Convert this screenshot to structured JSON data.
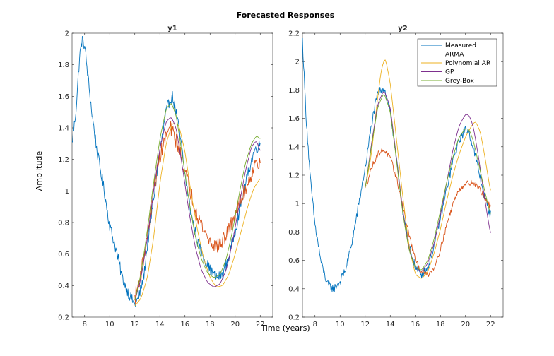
{
  "chart_data": {
    "type": "line",
    "title": "Forecasted Responses",
    "xlabel": "Time (years)",
    "ylabel": "Amplitude",
    "colors": {
      "Measured": "#0072BD",
      "ARMA": "#D95319",
      "Polynomial AR": "#EDB120",
      "GP": "#7E2F8E",
      "Grey-Box": "#77AC30"
    },
    "legend_order": [
      "Measured",
      "ARMA",
      "Polynomial AR",
      "GP",
      "Grey-Box"
    ],
    "legend_location": "top-right of y2 axes",
    "axes": [
      {
        "name": "y1",
        "title": "y1",
        "xlim": [
          7,
          23
        ],
        "ylim": [
          0.2,
          2.0
        ],
        "xticks": [
          8,
          10,
          12,
          14,
          16,
          18,
          20,
          22
        ],
        "yticks": [
          0.2,
          0.4,
          0.6,
          0.8,
          1.0,
          1.2,
          1.4,
          1.6,
          1.8,
          2.0
        ],
        "ytick_labels": [
          "0.2",
          "0.4",
          "0.6",
          "0.8",
          "1",
          "1.2",
          "1.4",
          "1.6",
          "1.8",
          "2"
        ],
        "series": [
          {
            "name": "Measured",
            "x": [
              7.0,
              7.3,
              7.6,
              7.8,
              8.0,
              8.3,
              8.6,
              9.0,
              9.5,
              10.0,
              10.5,
              11.0,
              11.5,
              12.0,
              12.3,
              12.7,
              13.0,
              13.5,
              14.0,
              14.5,
              14.8,
              15.0,
              15.3,
              15.7,
              16.0,
              16.5,
              17.0,
              17.5,
              18.0,
              18.5,
              19.0,
              19.5,
              20.0,
              20.5,
              21.0,
              21.5,
              22.0
            ],
            "y": [
              1.3,
              1.5,
              1.85,
              1.96,
              1.92,
              1.7,
              1.48,
              1.25,
              1.03,
              0.78,
              0.63,
              0.45,
              0.35,
              0.28,
              0.32,
              0.45,
              0.65,
              0.95,
              1.25,
              1.5,
              1.58,
              1.6,
              1.5,
              1.3,
              1.1,
              0.85,
              0.68,
              0.58,
              0.5,
              0.45,
              0.47,
              0.58,
              0.75,
              0.93,
              1.1,
              1.25,
              1.3
            ],
            "noise": 0.035
          },
          {
            "name": "ARMA",
            "x": [
              12.0,
              12.5,
              13.0,
              13.5,
              14.0,
              14.5,
              14.8,
              15.0,
              15.5,
              16.0,
              16.5,
              17.0,
              17.5,
              18.0,
              18.5,
              19.0,
              19.5,
              20.0,
              20.5,
              21.0,
              21.5,
              22.0
            ],
            "y": [
              0.32,
              0.48,
              0.72,
              1.0,
              1.22,
              1.35,
              1.4,
              1.38,
              1.28,
              1.12,
              0.98,
              0.85,
              0.75,
              0.68,
              0.65,
              0.68,
              0.75,
              0.85,
              0.95,
              1.05,
              1.15,
              1.2
            ],
            "noise": 0.05
          },
          {
            "name": "Polynomial AR",
            "x": [
              12.0,
              12.5,
              13.0,
              13.5,
              14.0,
              14.5,
              15.0,
              15.5,
              16.0,
              16.5,
              17.0,
              17.5,
              18.0,
              18.5,
              19.0,
              19.5,
              20.0,
              20.5,
              21.0,
              21.5,
              22.0
            ],
            "y": [
              0.27,
              0.32,
              0.45,
              0.7,
              1.05,
              1.3,
              1.43,
              1.42,
              1.25,
              0.98,
              0.75,
              0.57,
              0.45,
              0.39,
              0.4,
              0.47,
              0.6,
              0.75,
              0.9,
              1.02,
              1.08
            ],
            "noise": 0
          },
          {
            "name": "GP",
            "x": [
              12.0,
              12.5,
              13.0,
              13.5,
              14.0,
              14.5,
              14.9,
              15.3,
              15.8,
              16.3,
              16.8,
              17.3,
              17.8,
              18.3,
              18.8,
              19.3,
              19.8,
              20.3,
              20.8,
              21.3,
              21.7,
              22.0
            ],
            "y": [
              0.3,
              0.45,
              0.7,
              1.0,
              1.27,
              1.44,
              1.47,
              1.4,
              1.15,
              0.88,
              0.65,
              0.5,
              0.42,
              0.39,
              0.41,
              0.5,
              0.68,
              0.9,
              1.12,
              1.28,
              1.32,
              1.25
            ],
            "noise": 0
          },
          {
            "name": "Grey-Box",
            "x": [
              12.0,
              12.5,
              13.0,
              13.5,
              14.0,
              14.5,
              14.9,
              15.3,
              15.8,
              16.3,
              16.8,
              17.3,
              17.8,
              18.3,
              18.8,
              19.3,
              19.8,
              20.3,
              20.8,
              21.3,
              21.7,
              22.0
            ],
            "y": [
              0.3,
              0.48,
              0.75,
              1.05,
              1.33,
              1.52,
              1.56,
              1.48,
              1.22,
              0.95,
              0.72,
              0.57,
              0.48,
              0.45,
              0.47,
              0.57,
              0.75,
              0.97,
              1.17,
              1.3,
              1.35,
              1.33
            ],
            "noise": 0
          }
        ]
      },
      {
        "name": "y2",
        "title": "y2",
        "xlim": [
          7,
          23
        ],
        "ylim": [
          0.2,
          2.2
        ],
        "xticks": [
          8,
          10,
          12,
          14,
          16,
          18,
          20,
          22
        ],
        "yticks": [
          0.2,
          0.4,
          0.6,
          0.8,
          1.0,
          1.2,
          1.4,
          1.6,
          1.8,
          2.0,
          2.2
        ],
        "ytick_labels": [
          "0.2",
          "0.4",
          "0.6",
          "0.8",
          "1",
          "1.2",
          "1.4",
          "1.6",
          "1.8",
          "2",
          "2.2"
        ],
        "series": [
          {
            "name": "Measured",
            "x": [
              7.0,
              7.3,
              7.6,
              8.0,
              8.5,
              9.0,
              9.5,
              10.0,
              10.5,
              11.0,
              11.5,
              12.0,
              12.5,
              13.0,
              13.5,
              14.0,
              14.5,
              15.0,
              15.5,
              16.0,
              16.5,
              17.0,
              17.5,
              18.0,
              18.5,
              19.0,
              19.5,
              20.0,
              20.3,
              20.6,
              21.0,
              21.5,
              22.0
            ],
            "y": [
              2.15,
              1.6,
              1.2,
              0.85,
              0.58,
              0.43,
              0.4,
              0.45,
              0.55,
              0.75,
              1.0,
              1.25,
              1.55,
              1.78,
              1.82,
              1.65,
              1.3,
              0.95,
              0.7,
              0.55,
              0.5,
              0.55,
              0.7,
              0.9,
              1.1,
              1.3,
              1.45,
              1.52,
              1.5,
              1.4,
              1.25,
              1.05,
              0.92
            ],
            "noise": 0.03
          },
          {
            "name": "ARMA",
            "x": [
              12.0,
              12.5,
              13.0,
              13.5,
              14.0,
              14.5,
              15.0,
              15.5,
              16.0,
              16.5,
              17.0,
              17.5,
              18.0,
              18.5,
              19.0,
              19.5,
              20.0,
              20.5,
              21.0,
              21.5,
              22.0
            ],
            "y": [
              1.1,
              1.25,
              1.35,
              1.38,
              1.32,
              1.18,
              0.98,
              0.78,
              0.6,
              0.52,
              0.5,
              0.55,
              0.68,
              0.85,
              1.0,
              1.1,
              1.14,
              1.15,
              1.12,
              1.05,
              0.97
            ],
            "noise": 0.02
          },
          {
            "name": "Polynomial AR",
            "x": [
              12.0,
              12.5,
              13.0,
              13.3,
              13.6,
              14.0,
              14.5,
              15.0,
              15.5,
              16.0,
              16.5,
              17.0,
              17.5,
              18.0,
              18.5,
              19.0,
              19.5,
              20.0,
              20.5,
              20.8,
              21.2,
              21.6,
              22.0
            ],
            "y": [
              1.1,
              1.35,
              1.75,
              1.95,
              2.03,
              1.85,
              1.45,
              1.05,
              0.7,
              0.5,
              0.47,
              0.52,
              0.65,
              0.82,
              1.02,
              1.2,
              1.35,
              1.47,
              1.55,
              1.58,
              1.5,
              1.3,
              1.08
            ],
            "noise": 0
          },
          {
            "name": "GP",
            "x": [
              12.0,
              12.5,
              13.0,
              13.5,
              14.0,
              14.5,
              15.0,
              15.5,
              16.0,
              16.5,
              17.0,
              17.5,
              18.0,
              18.5,
              19.0,
              19.5,
              20.0,
              20.3,
              20.6,
              21.0,
              21.5,
              22.0
            ],
            "y": [
              1.1,
              1.42,
              1.7,
              1.8,
              1.68,
              1.32,
              0.95,
              0.68,
              0.55,
              0.52,
              0.58,
              0.72,
              0.92,
              1.15,
              1.38,
              1.55,
              1.63,
              1.62,
              1.55,
              1.35,
              1.05,
              0.78
            ],
            "noise": 0
          },
          {
            "name": "Grey-Box",
            "x": [
              12.0,
              12.5,
              13.0,
              13.5,
              14.0,
              14.5,
              15.0,
              15.5,
              16.0,
              16.5,
              17.0,
              17.5,
              18.0,
              18.5,
              19.0,
              19.5,
              20.0,
              20.3,
              20.6,
              21.0,
              21.5,
              22.0
            ],
            "y": [
              1.1,
              1.4,
              1.68,
              1.78,
              1.65,
              1.3,
              0.93,
              0.67,
              0.55,
              0.53,
              0.6,
              0.75,
              0.95,
              1.15,
              1.33,
              1.47,
              1.53,
              1.52,
              1.45,
              1.3,
              1.1,
              0.92
            ],
            "noise": 0
          }
        ]
      }
    ]
  }
}
